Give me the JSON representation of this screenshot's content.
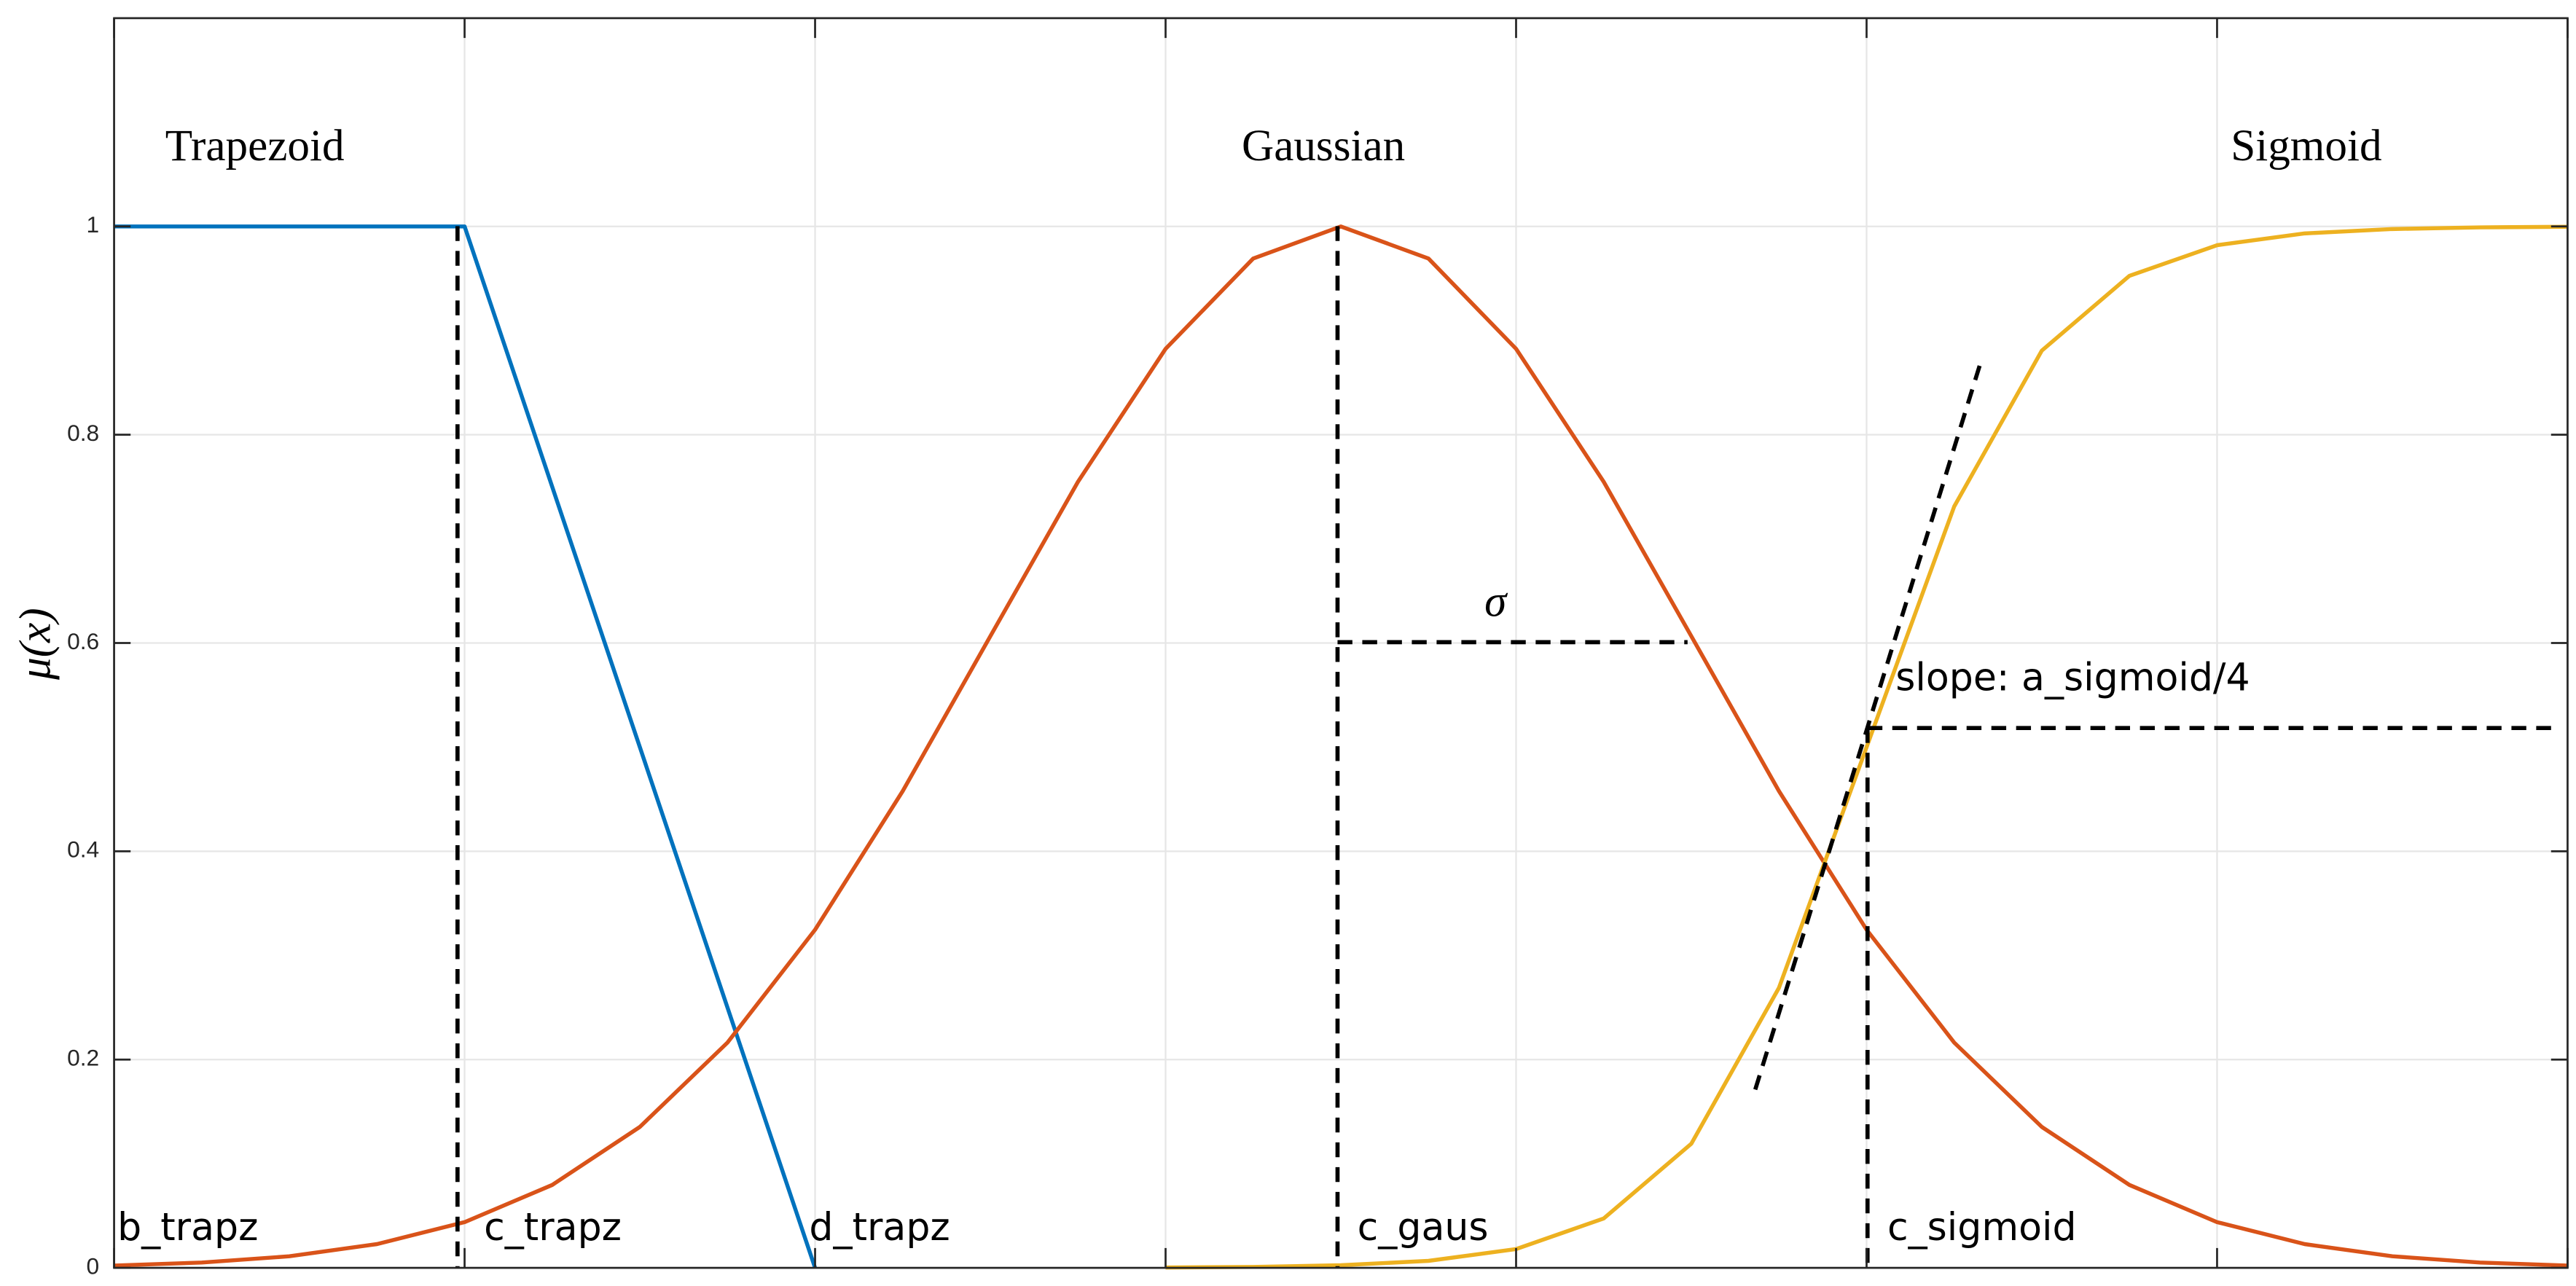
{
  "chart_data": {
    "type": "line",
    "y_label": "μ(x)",
    "x": [
      0,
      0.25,
      0.5,
      0.75,
      1,
      1.25,
      1.5,
      1.75,
      2,
      2.25,
      2.5,
      2.75,
      3,
      3.25,
      3.5,
      3.75,
      4,
      4.25,
      4.5,
      4.75,
      5,
      5.25,
      5.5,
      5.75,
      6,
      6.25,
      6.5,
      6.75,
      7
    ],
    "series": [
      {
        "name": "Trapezoid",
        "color": "#0072BD",
        "values": [
          1,
          1,
          1,
          1,
          1,
          0.75,
          0.5,
          0.25,
          0,
          null,
          null,
          null,
          null,
          null,
          null,
          null,
          null,
          null,
          null,
          null,
          null,
          null,
          null,
          null,
          null,
          null,
          null,
          null,
          null
        ]
      },
      {
        "name": "Gaussian",
        "color": "#D95319",
        "values": [
          0.0022,
          0.0051,
          0.0111,
          0.0228,
          0.0439,
          0.0796,
          0.1353,
          0.2163,
          0.3247,
          0.4578,
          0.6065,
          0.7548,
          0.8825,
          0.9692,
          1,
          0.9692,
          0.8825,
          0.7548,
          0.6065,
          0.4578,
          0.3247,
          0.2163,
          0.1353,
          0.0796,
          0.0439,
          0.0228,
          0.0111,
          0.0051,
          0.0022
        ]
      },
      {
        "name": "Sigmoid",
        "color": "#EDB120",
        "values": [
          null,
          null,
          null,
          null,
          null,
          null,
          null,
          null,
          null,
          null,
          null,
          null,
          0.0003,
          0.0009,
          0.0025,
          0.0067,
          0.018,
          0.0474,
          0.1192,
          0.2689,
          0.5,
          0.7311,
          0.8808,
          0.9526,
          0.982,
          0.9933,
          0.9975,
          0.9991,
          0.9997
        ]
      }
    ],
    "annotations": [
      "b_trapz",
      "c_trapz",
      "d_trapz",
      "c_gaus",
      "c_sigmoid",
      "σ",
      "slope: a_sigmoid/4"
    ],
    "xlim": [
      0,
      7
    ],
    "xticks": [
      0,
      1,
      2,
      3,
      4,
      5,
      6,
      7
    ],
    "ylim": [
      0,
      1.2
    ],
    "yticks": [
      0,
      0.2,
      0.4,
      0.6,
      0.8,
      1
    ],
    "grid": true
  }
}
